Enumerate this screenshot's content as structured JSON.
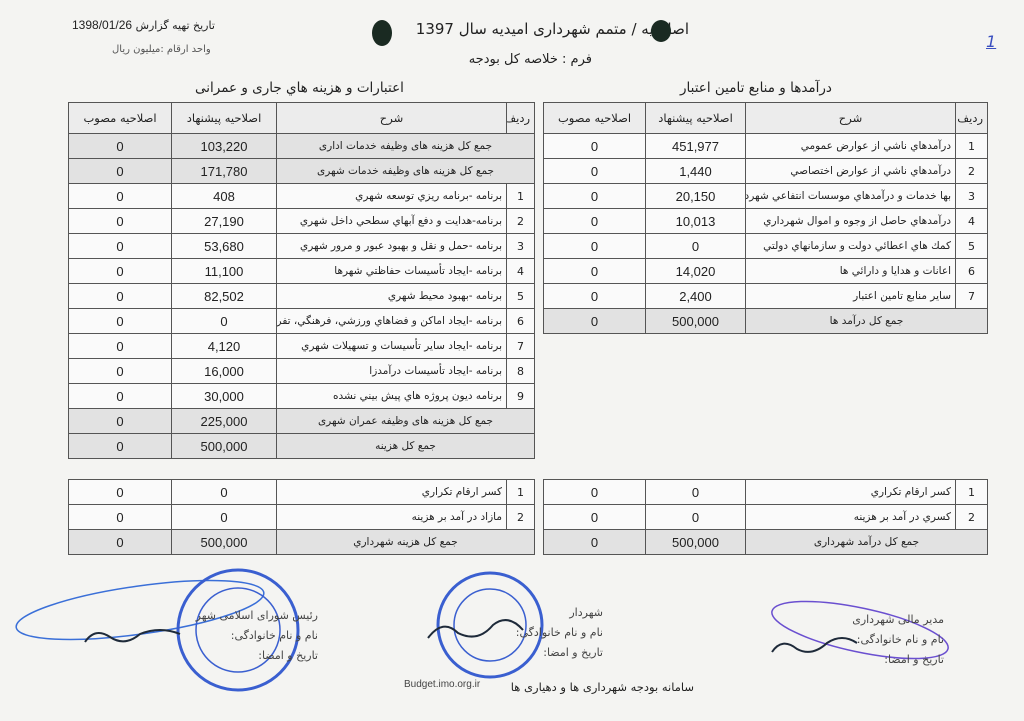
{
  "header": {
    "title": "اصلاحیه / متمم شهرداری امیدیه سال 1397",
    "form": "فرم : خلاصه کل بودجه",
    "report_date_label": "تاریخ تهیه گزارش",
    "report_date": "1398/01/26",
    "unit": "واحد ارقام :میلیون ریال",
    "page_mark": "1"
  },
  "expenses": {
    "heading": "اعتبارات و هزینه هاي جاری و عمرانی",
    "columns": [
      "ردیف",
      "شرح",
      "اصلاحیه پیشنهاد",
      "اصلاحیه مصوب"
    ],
    "rows": [
      {
        "no": "",
        "desc": "جمع کل هزینه های وظیفه خدمات اداری",
        "proposed": "103,220",
        "approved": "0",
        "sum": true
      },
      {
        "no": "",
        "desc": "جمع کل هزینه های وظیفه خدمات شهری",
        "proposed": "171,780",
        "approved": "0",
        "sum": true
      },
      {
        "no": "1",
        "desc": "برنامه -برنامه ریزي توسعه شهري",
        "proposed": "408",
        "approved": "0"
      },
      {
        "no": "2",
        "desc": "برنامه-هدایت و دفع آبهاي سطحي داخل شهري",
        "proposed": "27,190",
        "approved": "0"
      },
      {
        "no": "3",
        "desc": "برنامه -حمل و نقل و بهبود عبور و مرور شهري",
        "proposed": "53,680",
        "approved": "0"
      },
      {
        "no": "4",
        "desc": "برنامه -ایجاد تأسیسات حفاظتي شهرها",
        "proposed": "11,100",
        "approved": "0"
      },
      {
        "no": "5",
        "desc": "برنامه -بهبود محیط شهري",
        "proposed": "82,502",
        "approved": "0"
      },
      {
        "no": "6",
        "desc": "برنامه -ایجاد اماکن و فضاهاي ورزشي، فرهنگي، تفریحی",
        "proposed": "0",
        "approved": "0"
      },
      {
        "no": "7",
        "desc": "برنامه -ایجاد سایر تأسیسات و تسهیلات شهري",
        "proposed": "4,120",
        "approved": "0"
      },
      {
        "no": "8",
        "desc": "برنامه -ایجاد تأسیسات درآمدزا",
        "proposed": "16,000",
        "approved": "0"
      },
      {
        "no": "9",
        "desc": "برنامه دیون پروژه هاي پیش بیني نشده",
        "proposed": "30,000",
        "approved": "0"
      },
      {
        "no": "",
        "desc": "جمع کل هزینه های وظیفه عمران شهری",
        "proposed": "225,000",
        "approved": "0",
        "sum": true
      },
      {
        "no": "",
        "desc": "جمع کل هزینه",
        "proposed": "500,000",
        "approved": "0",
        "sum": true
      }
    ],
    "adjustments": [
      {
        "no": "1",
        "desc": "کسر ارقام تکراري",
        "proposed": "0",
        "approved": "0"
      },
      {
        "no": "2",
        "desc": "مازاد در آمد بر هزینه",
        "proposed": "0",
        "approved": "0"
      },
      {
        "no": "",
        "desc": "جمع کل هزینه شهرداري",
        "proposed": "500,000",
        "approved": "0",
        "sum": true
      }
    ]
  },
  "revenues": {
    "heading": "درآمدها و منابع تامین اعتبار",
    "columns": [
      "ردیف",
      "شرح",
      "اصلاحیه پیشنهاد",
      "اصلاحیه مصوب"
    ],
    "rows": [
      {
        "no": "1",
        "desc": "درآمدهاي ناشي از عوارض عمومي",
        "proposed": "451,977",
        "approved": "0"
      },
      {
        "no": "2",
        "desc": "درآمدهاي ناشي از عوارض اختصاصي",
        "proposed": "1,440",
        "approved": "0"
      },
      {
        "no": "3",
        "desc": "بها خدمات و درآمدهاي موسسات انتفاعي شهرداری",
        "proposed": "20,150",
        "approved": "0"
      },
      {
        "no": "4",
        "desc": "درآمدهاي حاصل از وجوه و اموال شهرداري",
        "proposed": "10,013",
        "approved": "0"
      },
      {
        "no": "5",
        "desc": "کمك هاي اعطائي دولت و سازمانهاي دولتي",
        "proposed": "0",
        "approved": "0"
      },
      {
        "no": "6",
        "desc": "اعانات و هدایا و دارائي ها",
        "proposed": "14,020",
        "approved": "0"
      },
      {
        "no": "7",
        "desc": "سایر منابع تامین اعتبار",
        "proposed": "2,400",
        "approved": "0"
      },
      {
        "no": "",
        "desc": "جمع کل درآمد ها",
        "proposed": "500,000",
        "approved": "0",
        "sum": true
      }
    ],
    "adjustments": [
      {
        "no": "1",
        "desc": "کسر ارقام تکراري",
        "proposed": "0",
        "approved": "0"
      },
      {
        "no": "2",
        "desc": "کسري در آمد بر هزینه",
        "proposed": "0",
        "approved": "0"
      },
      {
        "no": "",
        "desc": "جمع کل درآمد شهرداری",
        "proposed": "500,000",
        "approved": "0",
        "sum": true
      }
    ]
  },
  "signatures": {
    "council": {
      "role": "رئیس شورای اسلامی شهر",
      "name_label": "نام و نام خانوادگی:",
      "date_label": "تاریخ و امضا:"
    },
    "mayor": {
      "role": "شهردار",
      "name_label": "نام و نام خانوادگی:",
      "date_label": "تاریخ و امضا:"
    },
    "finance": {
      "role": "مدیر مالی شهرداری",
      "name_label": "نام و نام خانوادگی:",
      "date_label": "تاریخ و امضا:"
    }
  },
  "footer": {
    "system": "سامانه بودجه شهرداری ها و دهیاری ها",
    "site": "Budget.imo.org.ir"
  },
  "colors": {
    "stamp": "#3a5fd0",
    "signature_ink": "#1e2a3a",
    "sum_row": "#e2e2e2"
  }
}
